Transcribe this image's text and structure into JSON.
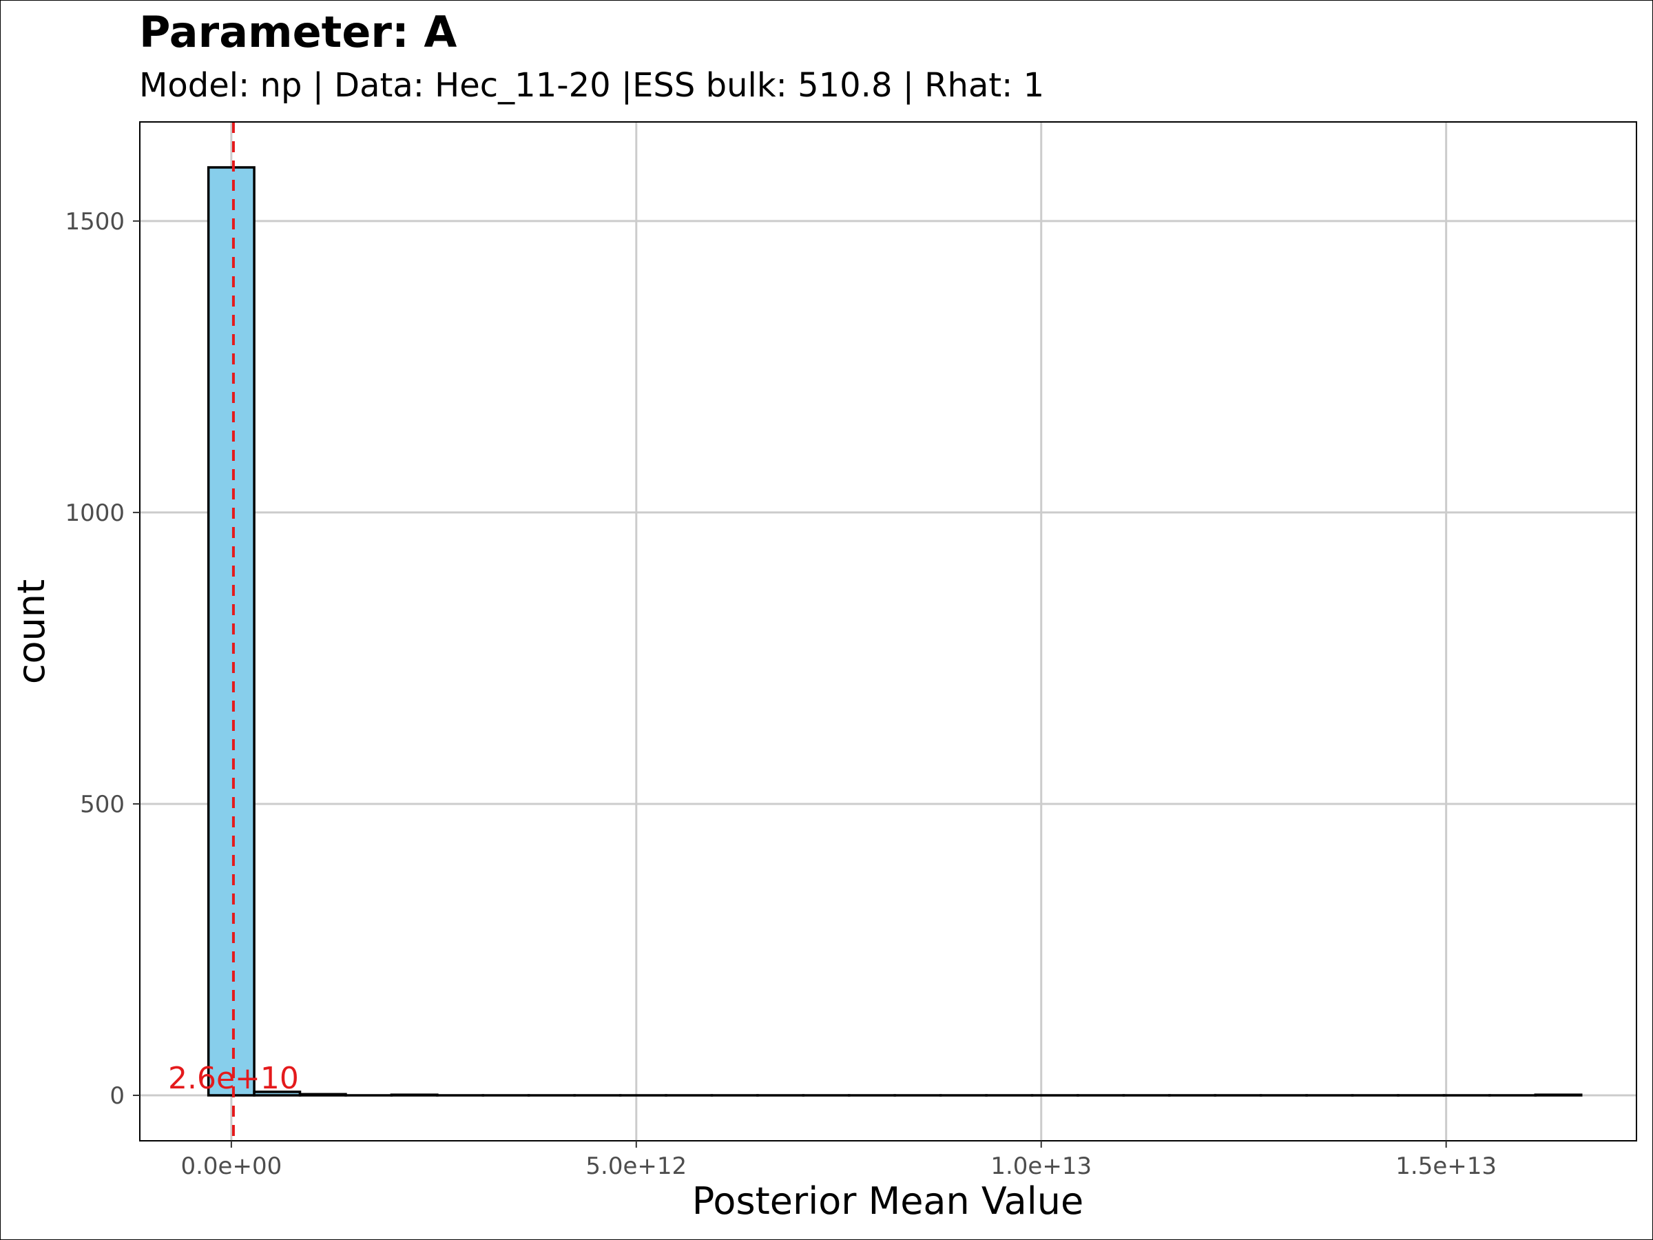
{
  "chart_data": {
    "type": "bar",
    "title": "Parameter: A",
    "subtitle": "Model: np | Data: Hec_11-20 |ESS bulk: 510.8 | Rhat: 1",
    "xlabel": "Posterior Mean Value",
    "ylabel": "count",
    "xlim": [
      -1130000000000.0,
      17350000000000.0
    ],
    "ylim": [
      -78,
      1670
    ],
    "bin_width": 565000000000.0,
    "bins": [
      {
        "x": 0,
        "count": 1592
      },
      {
        "x": 565000000000.0,
        "count": 6
      },
      {
        "x": 1130000000000.0,
        "count": 2
      },
      {
        "x": 1695000000000.0,
        "count": 0
      },
      {
        "x": 2260000000000.0,
        "count": 1
      },
      {
        "x": 2825000000000.0,
        "count": 0
      },
      {
        "x": 3390000000000.0,
        "count": 0
      },
      {
        "x": 3955000000000.0,
        "count": 0
      },
      {
        "x": 4520000000000.0,
        "count": 0
      },
      {
        "x": 5085000000000.0,
        "count": 0
      },
      {
        "x": 5650000000000.0,
        "count": 0
      },
      {
        "x": 6215000000000.0,
        "count": 0
      },
      {
        "x": 6780000000000.0,
        "count": 0
      },
      {
        "x": 7345000000000.0,
        "count": 0
      },
      {
        "x": 7910000000000.0,
        "count": 0
      },
      {
        "x": 8475000000000.0,
        "count": 0
      },
      {
        "x": 9040000000000.0,
        "count": 0
      },
      {
        "x": 9605000000000.0,
        "count": 0
      },
      {
        "x": 10170000000000.0,
        "count": 0
      },
      {
        "x": 10735000000000.0,
        "count": 0
      },
      {
        "x": 11300000000000.0,
        "count": 0
      },
      {
        "x": 11865000000000.0,
        "count": 0
      },
      {
        "x": 12430000000000.0,
        "count": 0
      },
      {
        "x": 12995000000000.0,
        "count": 0
      },
      {
        "x": 13560000000000.0,
        "count": 0
      },
      {
        "x": 14125000000000.0,
        "count": 0
      },
      {
        "x": 14690000000000.0,
        "count": 0
      },
      {
        "x": 15255000000000.0,
        "count": 0
      },
      {
        "x": 15820000000000.0,
        "count": 0
      },
      {
        "x": 16385000000000.0,
        "count": 1
      }
    ],
    "x_ticks": [
      {
        "value": 0,
        "label": "0.0e+00"
      },
      {
        "value": 5000000000000.0,
        "label": "5.0e+12"
      },
      {
        "value": 10000000000000.0,
        "label": "1.0e+13"
      },
      {
        "value": 15000000000000.0,
        "label": "1.5e+13"
      }
    ],
    "y_ticks": [
      {
        "value": 0,
        "label": "0"
      },
      {
        "value": 500,
        "label": "500"
      },
      {
        "value": 1000,
        "label": "1000"
      },
      {
        "value": 1500,
        "label": "1500"
      }
    ],
    "mean_line": {
      "value": 26000000000.0,
      "label": "2.6e+10"
    },
    "grid": true,
    "colors": {
      "bar_fill": "#87CEEB",
      "bar_stroke": "#000000",
      "mean_line": "#e41a1c",
      "grid": "#cccccc",
      "tick_label": "#4d4d4d"
    }
  }
}
